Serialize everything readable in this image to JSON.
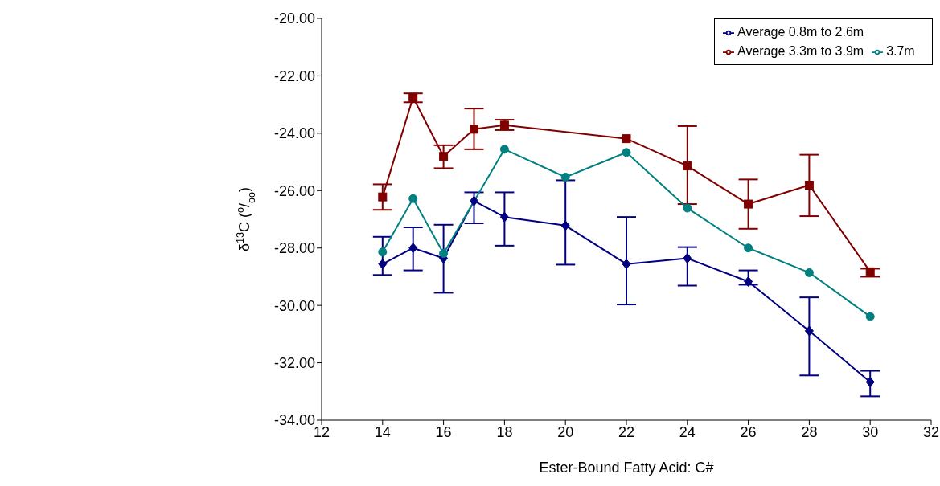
{
  "chart_data": {
    "type": "line",
    "xlabel": "Ester-Bound Fatty Acid: C#",
    "ylabel": "δ$^{13}$C ($^{o}$/$_{oo}$)",
    "xlim": [
      12,
      32
    ],
    "xticks": [
      12,
      14,
      16,
      18,
      20,
      22,
      24,
      26,
      28,
      30,
      32
    ],
    "ylim": [
      -34,
      -20
    ],
    "yticks": [
      {
        "value": -34,
        "label": "-34.00"
      },
      {
        "value": -32,
        "label": "-32.00"
      },
      {
        "value": -30,
        "label": "-30.00"
      },
      {
        "value": -28,
        "label": "-28.00"
      },
      {
        "value": -26,
        "label": "-26.00"
      },
      {
        "value": -24,
        "label": "-24.00"
      },
      {
        "value": -22,
        "label": "-22.00"
      },
      {
        "value": -20,
        "label": "-20.00"
      }
    ],
    "legend": "top right",
    "series": [
      {
        "name": "Average 0.8m to 2.6m",
        "color": "#000080",
        "marker": "diamond",
        "x": [
          14,
          15,
          16,
          17,
          18,
          20,
          22,
          24,
          26,
          28,
          30
        ],
        "values": [
          -28.56,
          -28.0,
          -28.36,
          -26.36,
          -26.92,
          -27.22,
          -28.56,
          -28.36,
          -29.17,
          -30.89,
          -32.67
        ],
        "errors": [
          [
            -28.94,
            -27.61
          ],
          [
            -28.78,
            -27.28
          ],
          [
            -29.56,
            -27.19
          ],
          [
            -27.14,
            -26.06
          ],
          [
            -27.92,
            -26.06
          ],
          [
            -28.58,
            -25.64
          ],
          [
            -29.97,
            -26.92
          ],
          [
            -29.31,
            -27.97
          ],
          [
            -29.28,
            -28.78
          ],
          [
            -32.44,
            -29.72
          ],
          [
            -33.17,
            -32.28
          ]
        ]
      },
      {
        "name": "Average 3.3m to 3.9m",
        "color": "#800000",
        "marker": "square",
        "x": [
          14,
          15,
          16,
          17,
          18,
          22,
          24,
          26,
          28,
          30
        ],
        "values": [
          -26.22,
          -22.75,
          -24.81,
          -23.86,
          -23.72,
          -24.19,
          -25.14,
          -26.47,
          -25.81,
          -28.83
        ],
        "errors": [
          [
            -26.67,
            -25.78
          ],
          [
            -22.92,
            -22.61
          ],
          [
            -25.22,
            -24.42
          ],
          [
            -24.56,
            -23.14
          ],
          [
            -23.89,
            -23.53
          ],
          null,
          [
            -26.47,
            -23.75
          ],
          [
            -27.33,
            -25.61
          ],
          [
            -26.89,
            -24.75
          ],
          [
            -29.0,
            -28.72
          ]
        ]
      },
      {
        "name": "3.7m",
        "color": "#008080",
        "marker": "circle",
        "x": [
          14,
          15,
          16,
          18,
          20,
          22,
          24,
          26,
          28,
          30
        ],
        "values": [
          -28.14,
          -26.28,
          -28.19,
          -24.56,
          -25.53,
          -24.67,
          -26.61,
          -28.0,
          -28.86,
          -30.39
        ]
      }
    ]
  }
}
